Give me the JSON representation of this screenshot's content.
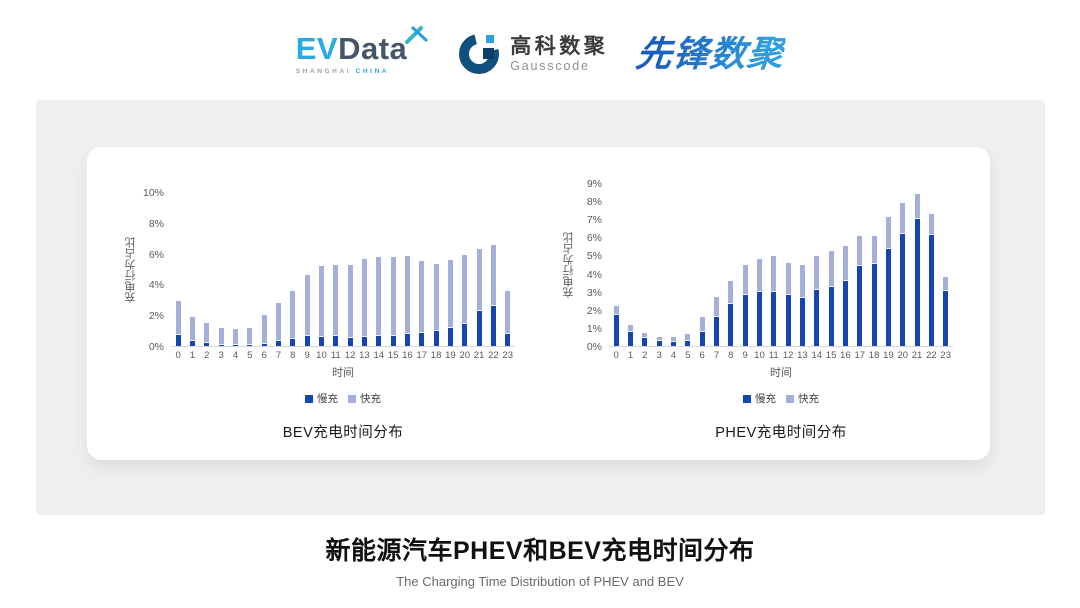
{
  "header": {
    "evdata": {
      "part1": "EV",
      "part2": "Data",
      "tagline_left": "SHANGHAI",
      "tagline_right": "CHINA"
    },
    "gausscode": {
      "name_cn": "高科数聚",
      "name_en": "Gausscode"
    },
    "pioneer": {
      "text": "先锋数聚"
    }
  },
  "chart_data": [
    {
      "type": "bar",
      "stacked": true,
      "title": "BEV充电时间分布",
      "xlabel": "时间",
      "ylabel": "充电行为占比",
      "ylim": [
        0,
        10
      ],
      "ytick_step": 2,
      "ytick_suffix": "%",
      "grid": false,
      "legend_position": "bottom",
      "categories": [
        0,
        1,
        2,
        3,
        4,
        5,
        6,
        7,
        8,
        9,
        10,
        11,
        12,
        13,
        14,
        15,
        16,
        17,
        18,
        19,
        20,
        21,
        22,
        23
      ],
      "series": [
        {
          "name": "慢充",
          "color": "#1546ad",
          "values": [
            0.7,
            0.35,
            0.2,
            0.1,
            0.08,
            0.1,
            0.15,
            0.3,
            0.45,
            0.65,
            0.6,
            0.65,
            0.55,
            0.6,
            0.65,
            0.65,
            0.75,
            0.85,
            1.0,
            1.2,
            1.45,
            2.3,
            2.6,
            0.8
          ]
        },
        {
          "name": "快充",
          "color": "#a5afdc",
          "values": [
            2.2,
            1.55,
            1.3,
            1.1,
            1.0,
            1.1,
            1.85,
            2.5,
            3.1,
            3.95,
            4.6,
            4.6,
            4.7,
            5.05,
            5.15,
            5.15,
            5.1,
            4.65,
            4.3,
            4.4,
            4.45,
            4.0,
            3.95,
            2.75
          ]
        }
      ]
    },
    {
      "type": "bar",
      "stacked": true,
      "title": "PHEV充电时间分布",
      "xlabel": "时间",
      "ylabel": "充电行为占比",
      "ylim": [
        0,
        9
      ],
      "ytick_step": 1,
      "ytick_suffix": "%",
      "grid": false,
      "legend_position": "bottom",
      "categories": [
        0,
        1,
        2,
        3,
        4,
        5,
        6,
        7,
        8,
        9,
        10,
        11,
        12,
        13,
        14,
        15,
        16,
        17,
        18,
        19,
        20,
        21,
        22,
        23
      ],
      "series": [
        {
          "name": "慢充",
          "color": "#1546ad",
          "values": [
            1.7,
            0.75,
            0.45,
            0.28,
            0.25,
            0.3,
            0.75,
            1.6,
            2.3,
            2.8,
            3.0,
            3.0,
            2.8,
            2.65,
            3.1,
            3.25,
            3.6,
            4.4,
            4.55,
            5.35,
            6.2,
            7.0,
            6.15,
            3.05
          ]
        },
        {
          "name": "快充",
          "color": "#a5afdc",
          "values": [
            0.5,
            0.4,
            0.25,
            0.22,
            0.25,
            0.35,
            0.85,
            1.1,
            1.3,
            1.7,
            1.8,
            2.0,
            1.8,
            1.85,
            1.9,
            2.0,
            1.9,
            1.7,
            1.55,
            1.75,
            1.7,
            1.4,
            1.15,
            0.75
          ]
        }
      ]
    }
  ],
  "footer": {
    "title": "新能源汽车PHEV和BEV充电时间分布",
    "subtitle": "The Charging Time Distribution of PHEV and BEV"
  }
}
